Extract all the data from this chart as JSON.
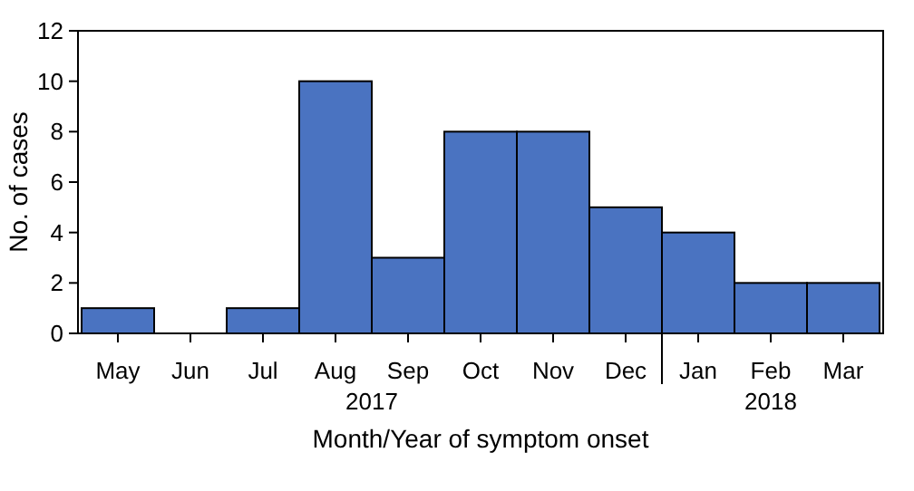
{
  "chart_data": {
    "type": "bar",
    "xlabel": "Month/Year of symptom onset",
    "ylabel": "No. of cases",
    "categories": [
      "May",
      "Jun",
      "Jul",
      "Aug",
      "Sep",
      "Oct",
      "Nov",
      "Dec",
      "Jan",
      "Feb",
      "Mar"
    ],
    "values": [
      1,
      0,
      1,
      10,
      3,
      8,
      8,
      5,
      4,
      2,
      2
    ],
    "color": "#4a73c1",
    "ylim": [
      0,
      12
    ],
    "yticks": [
      0,
      2,
      4,
      6,
      8,
      10,
      12
    ],
    "grid": false,
    "annotations": [
      "2017",
      "2018"
    ]
  }
}
